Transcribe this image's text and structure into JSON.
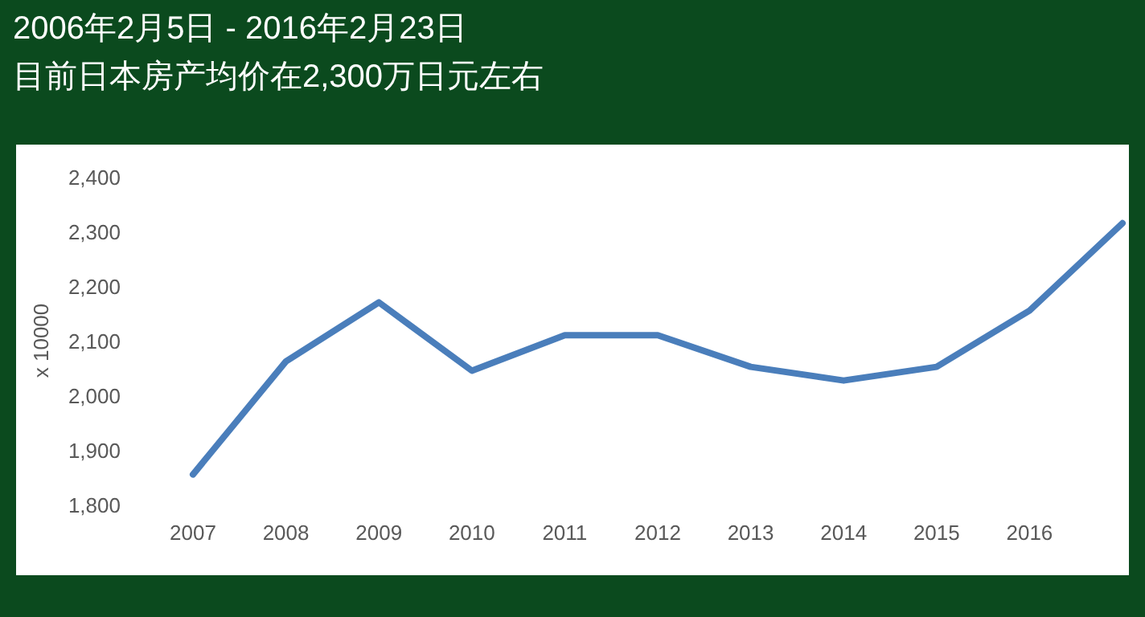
{
  "chart_data": {
    "type": "line",
    "title": "2006年2月5日 - 2016年2月23日",
    "subtitle": "目前日本房产均价在2,300万日元左右",
    "ylabel": "x 10000",
    "categories": [
      "2007",
      "2008",
      "2009",
      "2010",
      "2011",
      "2012",
      "2013",
      "2014",
      "2015",
      "2016",
      null
    ],
    "series": [
      {
        "color": "#4a7ebb",
        "values": [
          1855,
          2062,
          2170,
          2045,
          2110,
          2110,
          2052,
          2027,
          2052,
          2155,
          2315
        ]
      }
    ],
    "ylim": [
      1800,
      2400
    ],
    "yticks": [
      {
        "value": 1800,
        "label": "1,800"
      },
      {
        "value": 1900,
        "label": "1,900"
      },
      {
        "value": 2000,
        "label": "2,000"
      },
      {
        "value": 2100,
        "label": "2,100"
      },
      {
        "value": 2200,
        "label": "2,200"
      },
      {
        "value": 2300,
        "label": "2,300"
      },
      {
        "value": 2400,
        "label": "2,400"
      }
    ]
  }
}
